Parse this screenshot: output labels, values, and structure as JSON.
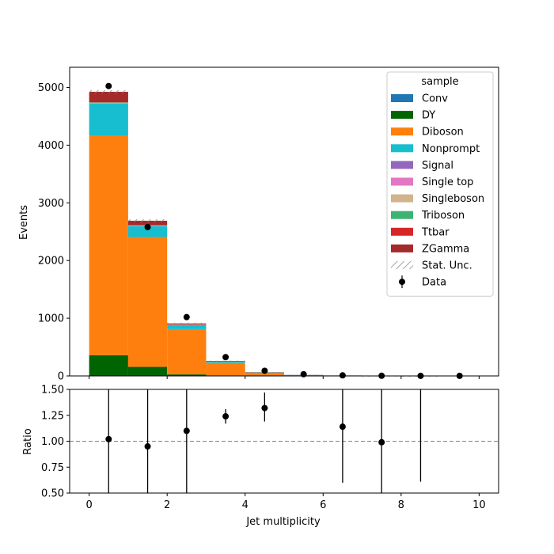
{
  "chart_data": {
    "type": "bar",
    "stacked": true,
    "xlabel": "Jet multiplicity",
    "ylabel": "Events",
    "ratio_ylabel": "Ratio",
    "bins": [
      [
        0,
        1
      ],
      [
        1,
        2
      ],
      [
        2,
        3
      ],
      [
        3,
        4
      ],
      [
        4,
        5
      ],
      [
        5,
        6
      ],
      [
        6,
        7
      ],
      [
        7,
        8
      ],
      [
        8,
        9
      ],
      [
        9,
        10
      ]
    ],
    "main_ylim": [
      0,
      5350
    ],
    "main_yticks": [
      0,
      1000,
      2000,
      3000,
      4000,
      5000
    ],
    "xlim": [
      -0.5,
      10.5
    ],
    "xticks": [
      0,
      2,
      4,
      6,
      8,
      10
    ],
    "ratio_ylim": [
      0.5,
      1.5
    ],
    "ratio_yticks": [
      "0.50",
      "0.75",
      "1.00",
      "1.25",
      "1.50"
    ],
    "ratio_reference": 1.0,
    "legend_title": "sample",
    "legend_position": "top-right",
    "series": [
      {
        "name": "Conv",
        "color": "#1f77b4",
        "values": [
          5,
          2,
          1,
          0,
          0,
          0,
          0,
          0,
          0,
          0
        ]
      },
      {
        "name": "DY",
        "color": "#006400",
        "values": [
          355,
          155,
          25,
          10,
          5,
          2,
          1,
          0,
          0,
          0
        ]
      },
      {
        "name": "Diboson",
        "color": "#ff7f0e",
        "values": [
          3810,
          2250,
          785,
          215,
          50,
          12,
          4,
          1,
          0.5,
          0
        ]
      },
      {
        "name": "Nonprompt",
        "color": "#17becf",
        "values": [
          550,
          190,
          70,
          20,
          5,
          2,
          1,
          0,
          0,
          0
        ]
      },
      {
        "name": "Signal",
        "color": "#9467bd",
        "values": [
          5,
          3,
          1,
          0,
          0,
          0,
          0,
          0,
          0,
          0
        ]
      },
      {
        "name": "Single top",
        "color": "#e377c2",
        "values": [
          5,
          3,
          2,
          1,
          0,
          0,
          0,
          0,
          0,
          0
        ]
      },
      {
        "name": "Singleboson",
        "color": "#d2b48c",
        "values": [
          5,
          2,
          1,
          0,
          0,
          0,
          0,
          0,
          0,
          0
        ]
      },
      {
        "name": "Triboson",
        "color": "#3cb371",
        "values": [
          5,
          5,
          3,
          2,
          1,
          1,
          1,
          1,
          0,
          0
        ]
      },
      {
        "name": "Ttbar",
        "color": "#d62728",
        "values": [
          5,
          10,
          8,
          5,
          2,
          1,
          1,
          0,
          0,
          0
        ]
      },
      {
        "name": "ZGamma",
        "color": "#a52a2a",
        "values": [
          180,
          70,
          14,
          7,
          3,
          1,
          0,
          0,
          0,
          0
        ]
      }
    ],
    "stat_unc": {
      "name": "Stat. Unc.",
      "values": [
        30,
        25,
        12,
        6,
        3,
        1.5,
        1,
        0.5,
        0.5,
        0
      ]
    },
    "data": {
      "name": "Data",
      "values": [
        5025,
        2580,
        1020,
        325,
        90,
        30,
        10,
        3,
        1,
        1
      ]
    },
    "ratio": {
      "x": [
        0.5,
        1.5,
        2.5,
        3.5,
        4.5,
        6.5,
        7.5,
        8.5
      ],
      "values": [
        1.02,
        0.95,
        1.1,
        1.24,
        1.32,
        1.14,
        0.99,
        null
      ],
      "err_low": [
        0.5,
        0.5,
        0.5,
        1.17,
        1.19,
        0.6,
        0.5,
        0.61
      ],
      "err_high": [
        1.5,
        1.5,
        1.5,
        1.31,
        1.47,
        1.5,
        1.5,
        1.5
      ]
    }
  }
}
